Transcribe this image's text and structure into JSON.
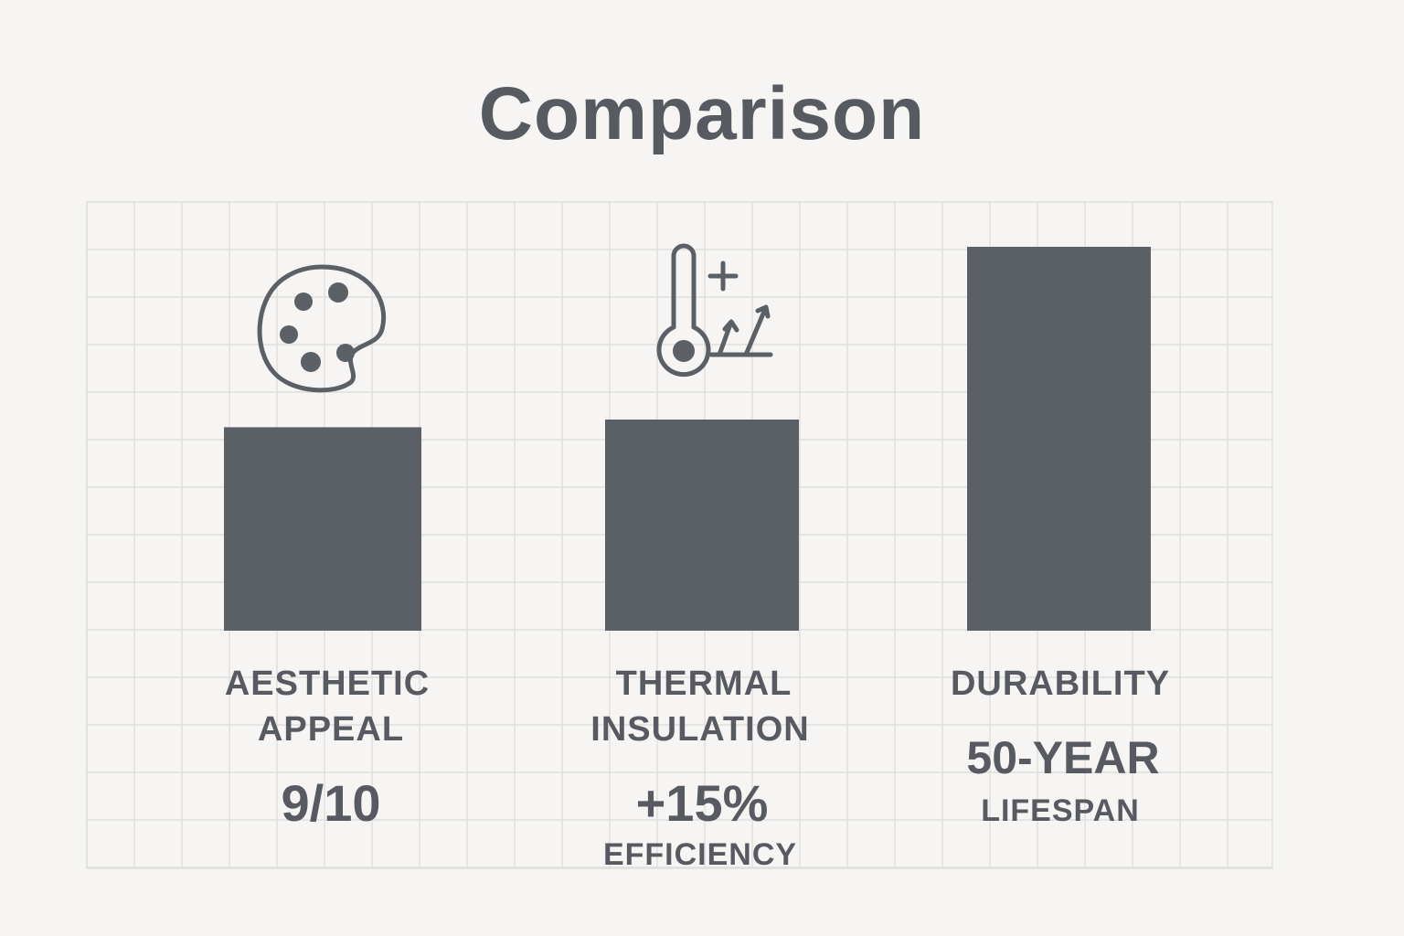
{
  "chart_data": {
    "type": "bar",
    "title": "Comparison",
    "xlabel": "",
    "ylabel": "",
    "grid": true,
    "categories": [
      {
        "line1": "AESTHETIC",
        "line2": "APPEAL",
        "value_text": "9/10",
        "value_sub": "",
        "icon": "palette-icon"
      },
      {
        "line1": "THERMAL",
        "line2": "INSULATION",
        "value_text": "+15%",
        "value_sub": "EFFICIENCY",
        "icon": "thermometer-efficiency-icon"
      },
      {
        "line1": "DURABILITY",
        "line2": "",
        "value_text": "50-YEAR",
        "value_sub": "LIFESPAN",
        "icon": ""
      }
    ],
    "relative_heights": [
      0.53,
      0.55,
      1.0
    ],
    "colors": {
      "bar": "#5b5f66",
      "text": "#575a60",
      "grid": "#dededc",
      "background": "#f6f5f3"
    }
  }
}
